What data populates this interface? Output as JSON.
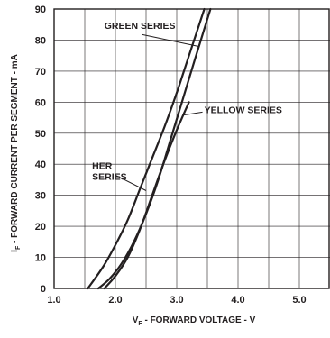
{
  "chart_data": {
    "type": "line",
    "title": "",
    "xlabel": {
      "main": "V",
      "sub": "F",
      "rest": " - FORWARD VOLTAGE - V"
    },
    "ylabel": {
      "main": "I",
      "sub": "F",
      "rest": " - FORWARD CURRENT PER SEGMENT - mA"
    },
    "xlim": [
      1.0,
      5.5
    ],
    "ylim": [
      0,
      90
    ],
    "xticks": [
      1.0,
      2.0,
      3.0,
      4.0,
      5.0
    ],
    "xtick_labels": [
      "1.0",
      "2.0",
      "3.0",
      "4.0",
      "5.0"
    ],
    "yticks": [
      0,
      10,
      20,
      30,
      40,
      50,
      60,
      70,
      80,
      90
    ],
    "ytick_labels": [
      "0",
      "10",
      "20",
      "30",
      "40",
      "50",
      "60",
      "70",
      "80",
      "90"
    ],
    "grid": true,
    "series": [
      {
        "name": "GREEN SERIES",
        "x": [
          1.72,
          1.9,
          2.1,
          2.3,
          2.5,
          2.7,
          2.9,
          3.1,
          3.3,
          3.55
        ],
        "y": [
          0,
          3,
          8,
          15,
          24,
          35,
          48,
          61,
          74,
          90
        ]
      },
      {
        "name": "YELLOW SERIES",
        "x": [
          1.82,
          2.0,
          2.2,
          2.4,
          2.6,
          2.8,
          3.0,
          3.2
        ],
        "y": [
          0,
          4,
          10,
          19,
          30,
          41,
          51,
          60
        ]
      },
      {
        "name": "HER SERIES",
        "x": [
          1.55,
          1.8,
          2.0,
          2.2,
          2.4,
          2.6,
          2.8,
          3.0,
          3.2,
          3.45
        ],
        "y": [
          0,
          7,
          14,
          22,
          32,
          42,
          52,
          63,
          75,
          90
        ]
      }
    ],
    "annotations": [
      {
        "text": [
          "GREEN SERIES"
        ],
        "points_to": "GREEN SERIES"
      },
      {
        "text": [
          "YELLOW SERIES"
        ],
        "points_to": "YELLOW SERIES"
      },
      {
        "text": [
          "HER",
          "SERIES"
        ],
        "points_to": "HER SERIES"
      }
    ]
  }
}
